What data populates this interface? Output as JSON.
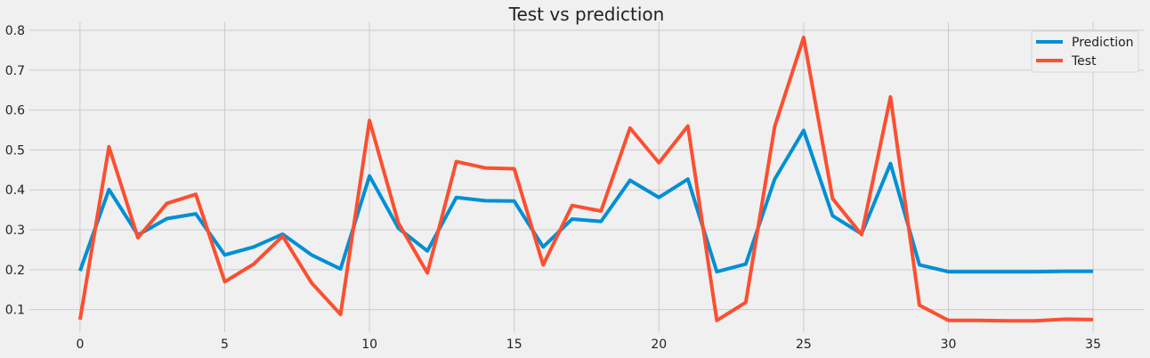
{
  "chart_data": {
    "type": "line",
    "title": "Test  vs prediction",
    "xlabel": "",
    "ylabel": "",
    "x": [
      0,
      1,
      2,
      3,
      4,
      5,
      6,
      7,
      8,
      9,
      10,
      11,
      12,
      13,
      14,
      15,
      16,
      17,
      18,
      19,
      20,
      21,
      22,
      23,
      24,
      25,
      26,
      27,
      28,
      29,
      30,
      31,
      32,
      33,
      34,
      35
    ],
    "xlim": [
      -1.75,
      36.75
    ],
    "ylim": [
      0.0435,
      0.82
    ],
    "xticks": [
      0,
      5,
      10,
      15,
      20,
      25,
      30,
      35
    ],
    "yticks": [
      0.1,
      0.2,
      0.3,
      0.4,
      0.5,
      0.6,
      0.7,
      0.8
    ],
    "xtick_labels": [
      "0",
      "5",
      "10",
      "15",
      "20",
      "25",
      "30",
      "35"
    ],
    "ytick_labels": [
      "0.1",
      "0.2",
      "0.3",
      "0.4",
      "0.5",
      "0.6",
      "0.7",
      "0.8"
    ],
    "grid": true,
    "legend_position": "top-right",
    "series": [
      {
        "name": "Prediction",
        "color": "#008fd5",
        "values": [
          0.197,
          0.401,
          0.287,
          0.328,
          0.34,
          0.237,
          0.257,
          0.289,
          0.237,
          0.202,
          0.435,
          0.304,
          0.247,
          0.381,
          0.373,
          0.372,
          0.257,
          0.327,
          0.321,
          0.424,
          0.381,
          0.427,
          0.195,
          0.214,
          0.427,
          0.549,
          0.335,
          0.29,
          0.466,
          0.212,
          0.195,
          0.195,
          0.195,
          0.195,
          0.196,
          0.196
        ]
      },
      {
        "name": "Test",
        "color": "#fc4f30",
        "values": [
          0.075,
          0.508,
          0.28,
          0.366,
          0.389,
          0.17,
          0.214,
          0.284,
          0.167,
          0.088,
          0.574,
          0.317,
          0.192,
          0.471,
          0.455,
          0.453,
          0.212,
          0.361,
          0.347,
          0.555,
          0.468,
          0.56,
          0.073,
          0.118,
          0.559,
          0.782,
          0.378,
          0.288,
          0.633,
          0.111,
          0.073,
          0.073,
          0.072,
          0.072,
          0.076,
          0.075
        ]
      }
    ]
  }
}
